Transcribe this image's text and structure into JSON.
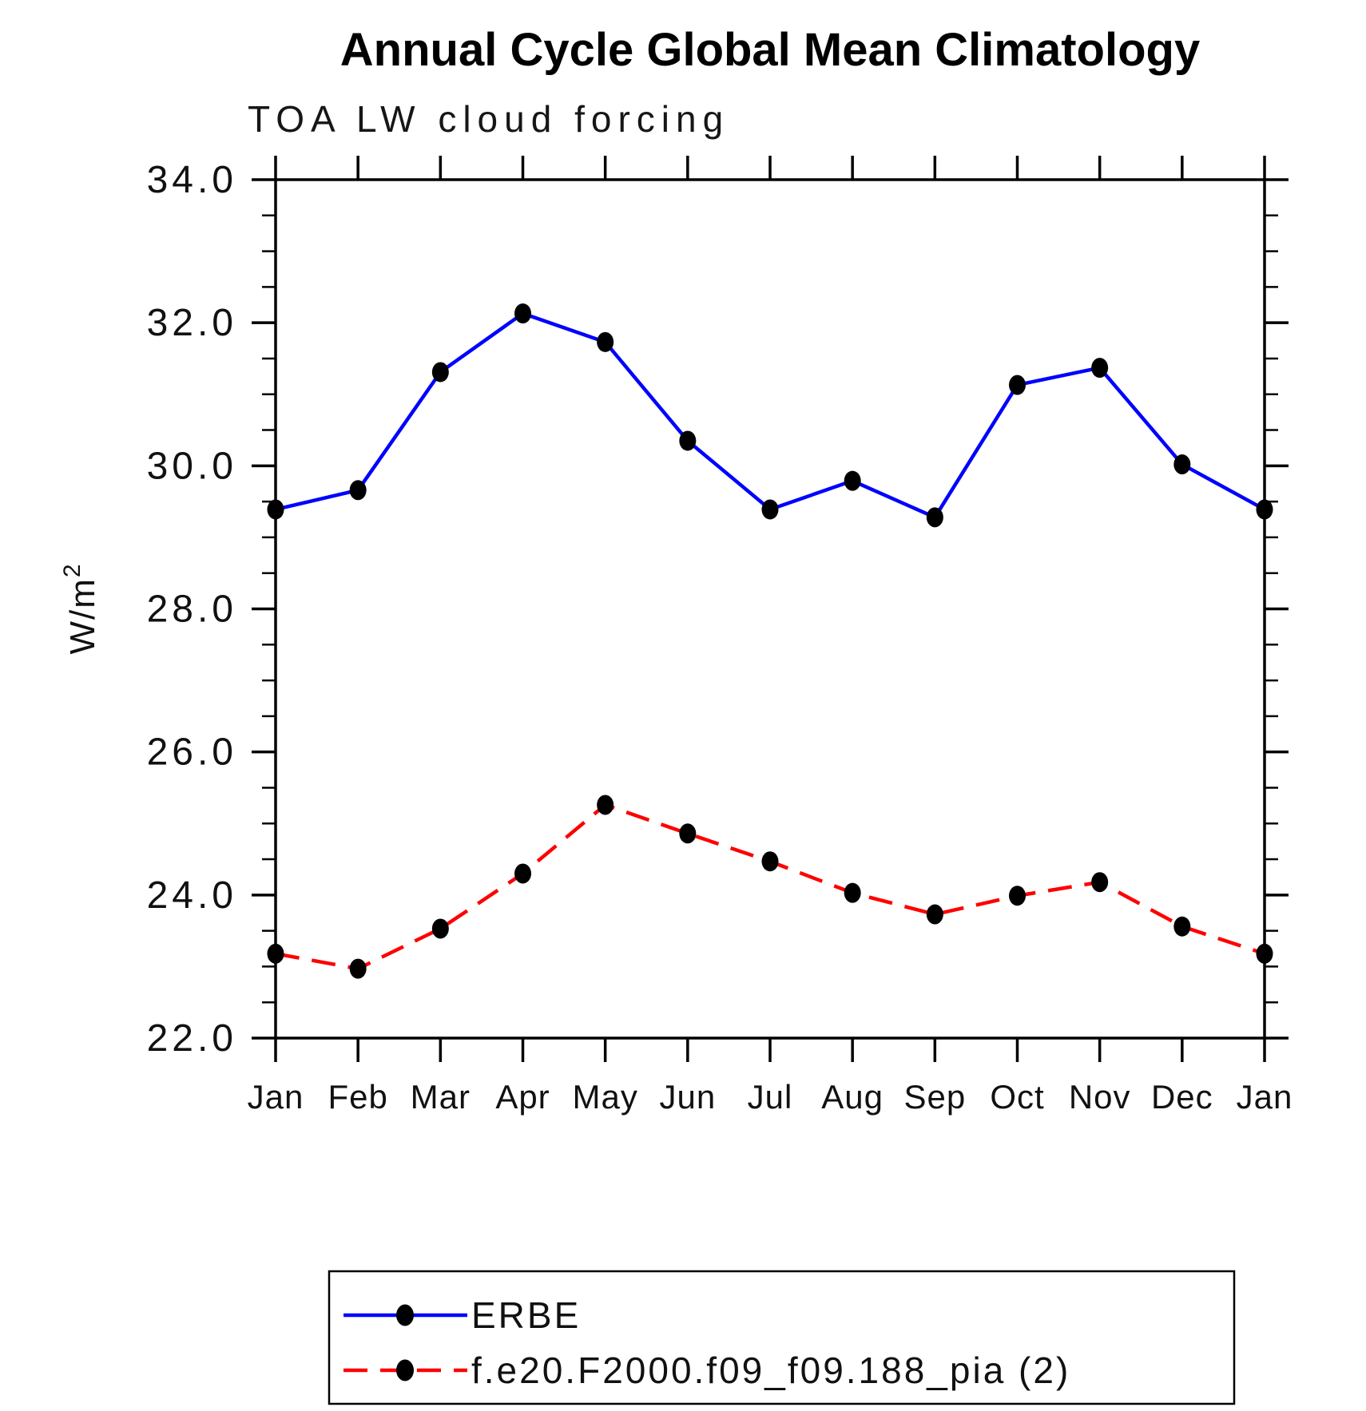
{
  "title": "Annual Cycle Global Mean Climatology",
  "subtitle": "TOA LW cloud forcing",
  "ylabel": {
    "base": "W/m",
    "sup": "2"
  },
  "chart_data": {
    "type": "line",
    "x_categories": [
      "Jan",
      "Feb",
      "Mar",
      "Apr",
      "May",
      "Jun",
      "Jul",
      "Aug",
      "Sep",
      "Oct",
      "Nov",
      "Dec",
      "Jan"
    ],
    "ylim": [
      22.0,
      34.0
    ],
    "ytick_major_step": 2.0,
    "ytick_minor_step": 0.5,
    "ytick_labels": [
      "22.0",
      "24.0",
      "26.0",
      "28.0",
      "30.0",
      "32.0",
      "34.0"
    ],
    "grid": false,
    "legend_position": "bottom",
    "marker": {
      "shape": "filled-circle",
      "color": "#000000"
    },
    "series": [
      {
        "name": "ERBE",
        "color": "#0000ff",
        "line_style": "solid",
        "values": [
          29.39,
          29.66,
          31.31,
          32.13,
          31.73,
          30.35,
          29.39,
          29.79,
          29.28,
          31.13,
          31.37,
          30.02,
          29.39
        ]
      },
      {
        "name": "f.e20.F2000.f09_f09.188_pia (2)",
        "color": "#ff0000",
        "line_style": "dashed",
        "values": [
          23.18,
          22.97,
          23.53,
          24.3,
          25.26,
          24.86,
          24.47,
          24.03,
          23.73,
          23.99,
          24.18,
          23.56,
          23.18
        ]
      }
    ]
  }
}
